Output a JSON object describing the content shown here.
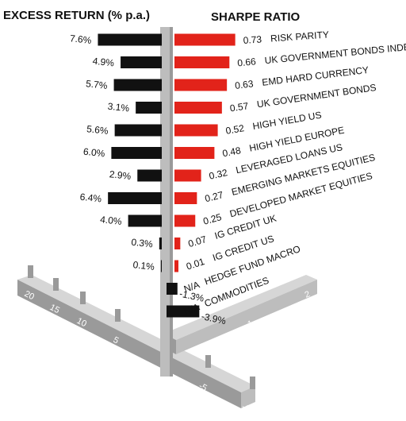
{
  "chart_data": {
    "type": "bar",
    "layout": "back-to-back horizontal bars on a 3D baseboard",
    "left_title": "EXCESS RETURN (% p.a.)",
    "right_title": "SHARPE RATIO",
    "categories": [
      "RISK PARITY",
      "UK GOVERNMENT BONDS INDEX-LINKED",
      "EMD HARD CURRENCY",
      "UK GOVERNMENT BONDS",
      "HIGH YIELD US",
      "HIGH YIELD EUROPE",
      "LEVERAGED LOANS US",
      "EMERGING MARKETS EQUITIES",
      "DEVELOPED MARKET EQUITIES",
      "IG CREDIT UK",
      "IG CREDIT US",
      "HEDGE FUND MACRO",
      "COMMODITIES"
    ],
    "series": [
      {
        "name": "EXCESS RETURN (% p.a.)",
        "color": "#111111",
        "values": [
          7.6,
          4.9,
          5.7,
          3.1,
          5.6,
          6.0,
          2.9,
          6.4,
          4.0,
          0.3,
          0.1,
          -1.3,
          -3.9
        ],
        "labels": [
          "7.6%",
          "4.9%",
          "5.7%",
          "3.1%",
          "5.6%",
          "6.0%",
          "2.9%",
          "6.4%",
          "4.0%",
          "0.3%",
          "0.1%",
          "-1.3%",
          "-3.9%"
        ]
      },
      {
        "name": "SHARPE RATIO",
        "color": "#e2231a",
        "values": [
          0.73,
          0.66,
          0.63,
          0.57,
          0.52,
          0.48,
          0.32,
          0.27,
          0.25,
          0.07,
          0.01,
          null,
          null
        ],
        "labels": [
          "0.73",
          "0.66",
          "0.63",
          "0.57",
          "0.52",
          "0.48",
          "0.32",
          "0.27",
          "0.25",
          "0.07",
          "0.01",
          "N/A",
          "N/A"
        ]
      }
    ],
    "left_axis": {
      "ticks": [
        "20",
        "15",
        "10",
        "5",
        "-5",
        "-10"
      ]
    },
    "right_axis": {
      "ticks": [
        "1",
        "2"
      ]
    },
    "colors": {
      "positive_return": "#111111",
      "sharpe": "#e2231a",
      "base": "#bdbdbd"
    }
  }
}
